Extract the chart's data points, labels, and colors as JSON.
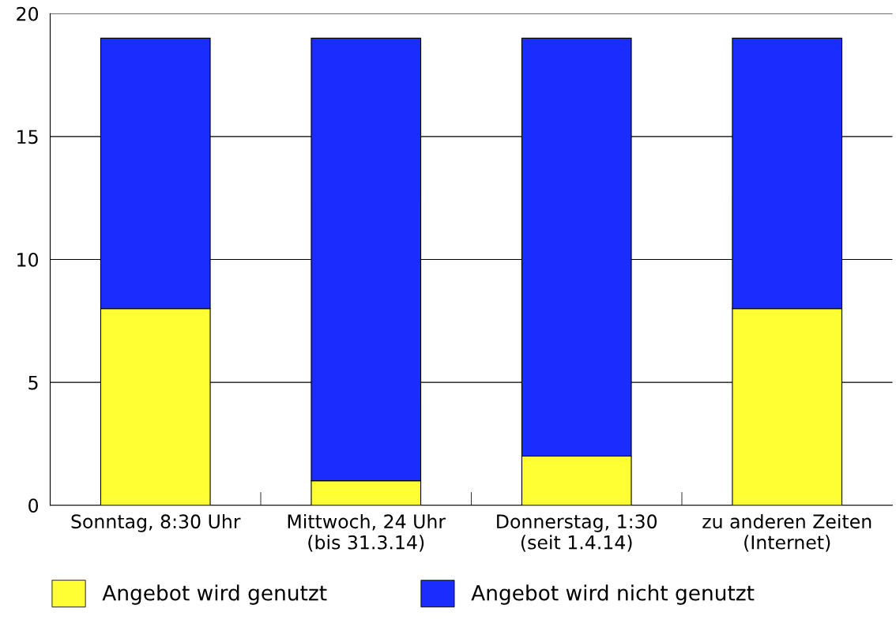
{
  "chart_data": {
    "type": "bar",
    "stacked": true,
    "categories": [
      "Sonntag, 8:30 Uhr",
      "Mittwoch, 24 Uhr\n(bis 31.3.14)",
      "Donnerstag, 1:30\n(seit 1.4.14)",
      "zu anderen Zeiten\n(Internet)"
    ],
    "series": [
      {
        "name": "Angebot wird genutzt",
        "color": "#ffff33",
        "values": [
          8,
          1,
          2,
          8
        ]
      },
      {
        "name": "Angebot wird nicht genutzt",
        "color": "#1a2cff",
        "values": [
          11,
          18,
          17,
          11
        ]
      }
    ],
    "ylim": [
      0,
      20
    ],
    "yticks": [
      0,
      5,
      10,
      15,
      20
    ],
    "grid": "y",
    "legend": "bottom"
  }
}
